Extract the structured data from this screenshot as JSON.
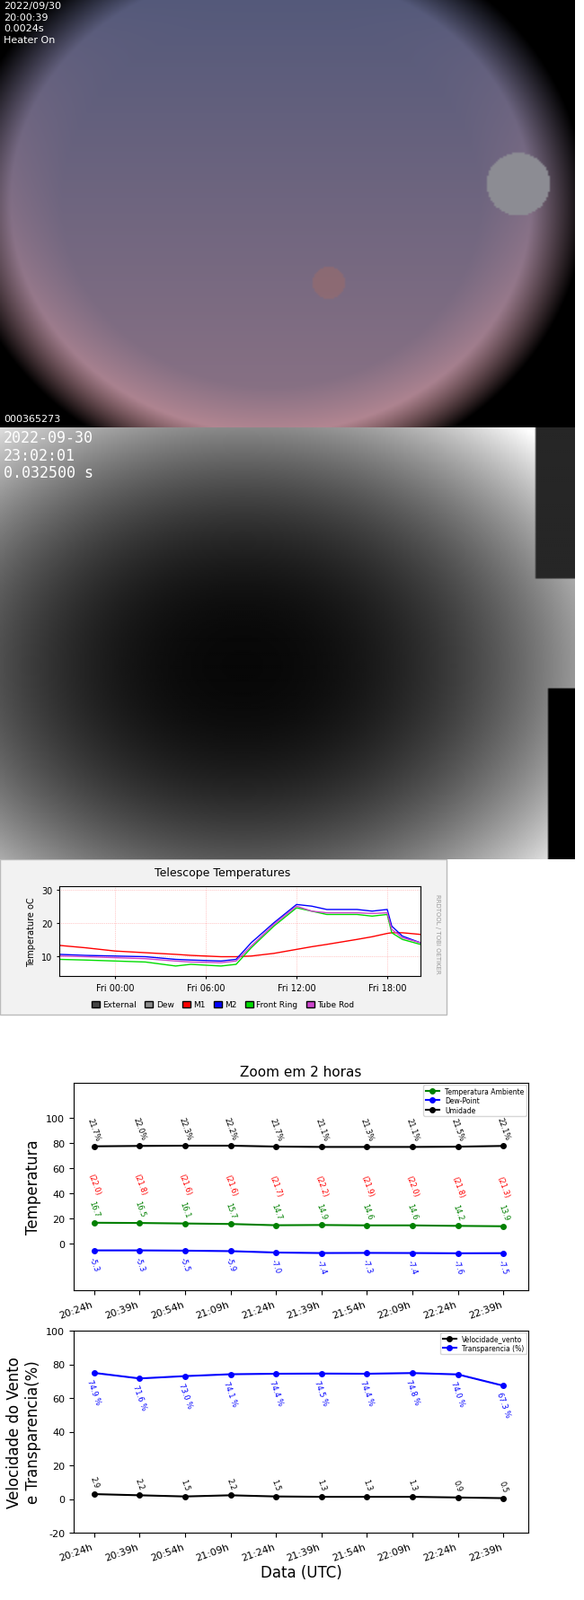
{
  "images": [
    {
      "texts": [
        "2022/09/30",
        "20:00:39",
        "0.0024s",
        "Heater On"
      ],
      "footer": "000365273"
    },
    {
      "texts": [
        "2022-09-30",
        "23:02:01",
        "0.032500 s"
      ]
    }
  ],
  "chart_data": [
    {
      "type": "line",
      "title": "Telescope Temperatures",
      "y_label": "Temperature oC",
      "side_text": "RRDTOOL / TOBI OETIKER",
      "x": [
        -3.7,
        -2,
        0,
        2,
        4,
        5,
        7,
        8,
        9,
        10.5,
        12,
        13,
        14,
        16,
        17,
        18,
        18.3,
        19,
        20.2
      ],
      "xlim": [
        -3.7,
        20.2
      ],
      "xticks": [
        {
          "value": 0,
          "label": "Fri 00:00"
        },
        {
          "value": 6,
          "label": "Fri 06:00"
        },
        {
          "value": 12,
          "label": "Fri 12:00"
        },
        {
          "value": 18,
          "label": "Fri 18:00"
        }
      ],
      "ylim": [
        4,
        31
      ],
      "yticks": [
        10,
        20,
        30
      ],
      "grid": true,
      "legend": "bottom",
      "series": [
        {
          "name": "External",
          "color": "#444444",
          "values": [
            null,
            null,
            null,
            null,
            null,
            null,
            null,
            null,
            null,
            null,
            null,
            null,
            null,
            null,
            null,
            null,
            null,
            null,
            null
          ]
        },
        {
          "name": "Dew",
          "color": "#8c8c8c",
          "values": [
            null,
            null,
            null,
            null,
            null,
            null,
            null,
            null,
            null,
            null,
            null,
            null,
            null,
            null,
            null,
            null,
            null,
            null,
            null
          ]
        },
        {
          "name": "M1",
          "color": "#ff0000",
          "values": [
            13.2,
            12.5,
            11.5,
            11,
            10.5,
            10.2,
            9.8,
            9.8,
            10,
            10.8,
            12,
            12.8,
            13.5,
            15,
            15.8,
            16.8,
            17,
            17,
            16.5
          ]
        },
        {
          "name": "M2",
          "color": "#0000ff",
          "values": [
            10.5,
            10.2,
            10,
            9.8,
            9,
            8.8,
            8.5,
            9,
            14,
            20,
            25.5,
            25,
            24,
            24,
            23.5,
            24,
            19,
            16,
            14
          ]
        },
        {
          "name": "Front Ring",
          "color": "#00dd00",
          "values": [
            9,
            8.8,
            8.5,
            8.2,
            7,
            7.5,
            7,
            7.5,
            12.5,
            19,
            24.5,
            23.5,
            22.5,
            22.5,
            22,
            22.5,
            17,
            15,
            13.5
          ]
        },
        {
          "name": "Tube Rod",
          "color": "#cc44cc",
          "values": [
            10,
            9.8,
            9.5,
            9.2,
            8.5,
            8.2,
            8,
            8.5,
            13,
            19.5,
            25,
            23.5,
            23,
            23,
            22.8,
            23,
            18,
            15.5,
            14
          ]
        }
      ]
    },
    {
      "type": "line",
      "title": "Zoom em 2 horas",
      "y_label": "Temperatura",
      "categories": [
        "20:24h",
        "20:39h",
        "20:54h",
        "21:09h",
        "21:24h",
        "21:39h",
        "21:54h",
        "22:09h",
        "22:24h",
        "22:39h"
      ],
      "ylim": [
        -37,
        128
      ],
      "yticks": [
        0,
        20,
        40,
        60,
        80,
        100
      ],
      "grid": false,
      "legend": "upper right",
      "series": [
        {
          "name": "Temperatura Ambiente",
          "color": "green",
          "marker": "circle",
          "data_labels": true,
          "values": [
            16.7,
            16.5,
            16.1,
            15.7,
            14.7,
            14.9,
            14.6,
            14.6,
            14.2,
            13.9
          ]
        },
        {
          "name": "Dew-Point",
          "color": "blue",
          "marker": "circle",
          "data_labels": true,
          "values": [
            -5.3,
            -5.3,
            -5.5,
            -5.9,
            -7.0,
            -7.4,
            -7.3,
            -7.4,
            -7.6,
            -7.5
          ]
        },
        {
          "name": "Umidade",
          "color": "black",
          "marker": "circle",
          "data_labels": false,
          "values": [
            77.5,
            77.8,
            78,
            78,
            77.3,
            77,
            77,
            77,
            77.2,
            77.8
          ],
          "annotations": [
            "21.7%",
            "22.0%",
            "22.3%",
            "22.2%",
            "21.7%",
            "21.1%",
            "21.3%",
            "21.1%",
            "21.5%",
            "22.1%"
          ]
        }
      ],
      "annotations": [
        {
          "color": "red",
          "texts": [
            "(22.0)",
            "(21.8)",
            "(21.6)",
            "(21.6)",
            "(21.7)",
            "(22.2)",
            "(21.9)",
            "(22.0)",
            "(21.8)",
            "(21.3)"
          ]
        }
      ]
    },
    {
      "type": "line",
      "x_label": "Data (UTC)",
      "y_label": "Velocidade do Vento\ne Transparencia(%)",
      "categories": [
        "20:24h",
        "20:39h",
        "20:54h",
        "21:09h",
        "21:24h",
        "21:39h",
        "21:54h",
        "22:09h",
        "22:24h",
        "22:39h"
      ],
      "ylim": [
        -20,
        100
      ],
      "yticks": [
        -20,
        0,
        20,
        40,
        60,
        80,
        100
      ],
      "grid": false,
      "legend": "upper right",
      "series": [
        {
          "name": "Velocidade_vento",
          "color": "black",
          "marker": "circle",
          "data_labels": true,
          "values": [
            2.9,
            2.2,
            1.5,
            2.2,
            1.5,
            1.3,
            1.3,
            1.3,
            0.9,
            0.5
          ]
        },
        {
          "name": "Transparencia (%)",
          "color": "blue",
          "marker": "circle",
          "data_labels": true,
          "values": [
            74.9,
            71.6,
            73.0,
            74.1,
            74.4,
            74.5,
            74.4,
            74.8,
            74.0,
            67.3
          ],
          "value_labels": [
            "74.9 %",
            "71.6 %",
            "73.0 %",
            "74.1 %",
            "74.4 %",
            "74.5 %",
            "74.4 %",
            "74.8 %",
            "74.0 %",
            "67.3 %"
          ]
        }
      ]
    }
  ]
}
